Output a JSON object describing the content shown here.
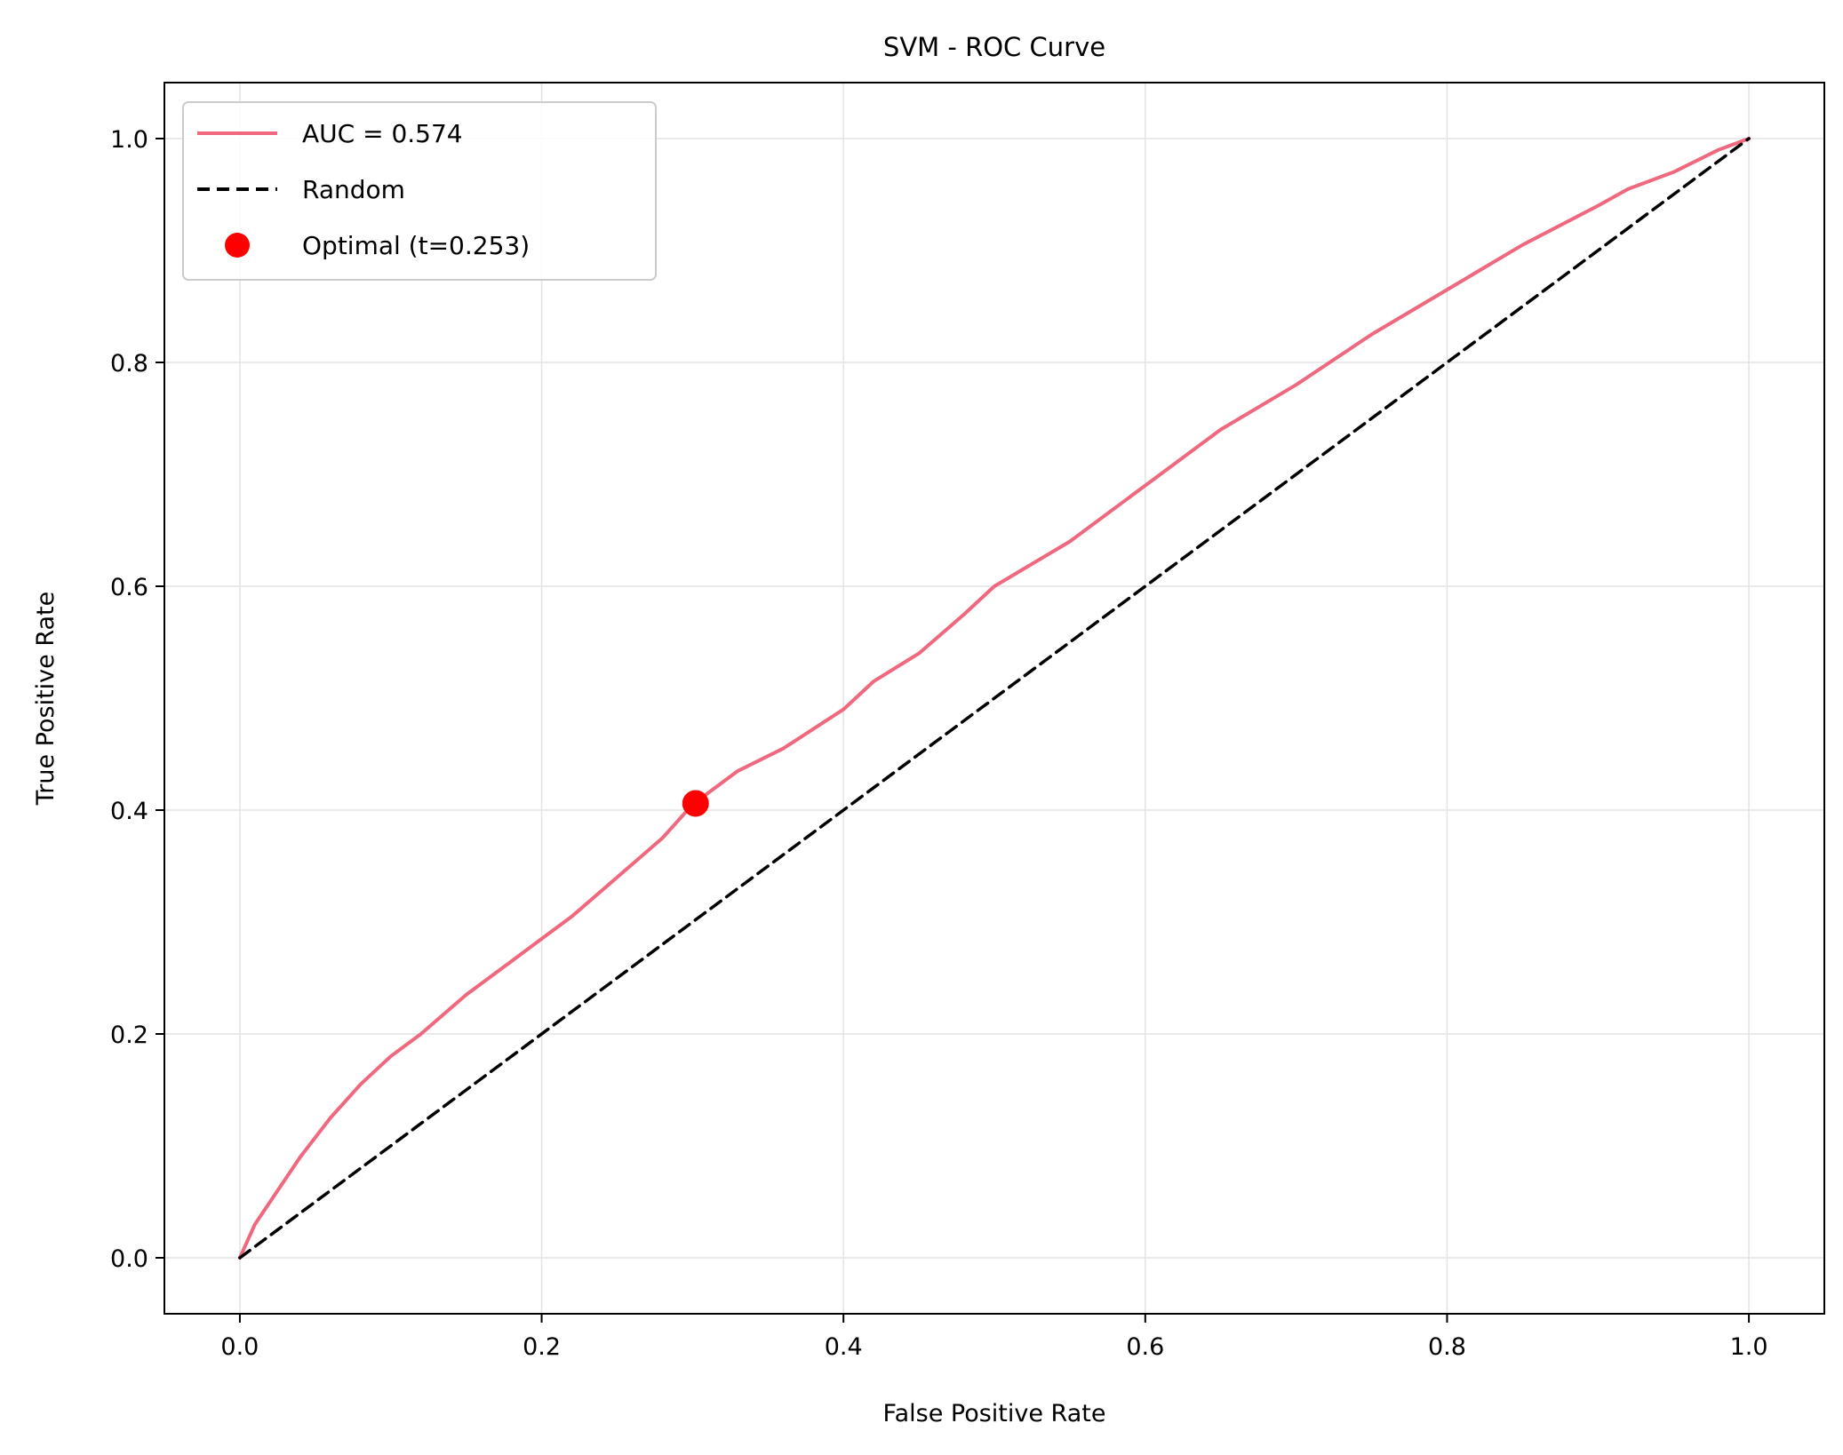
{
  "chart_data": {
    "type": "line",
    "title": "SVM - ROC Curve",
    "xlabel": "False Positive Rate",
    "ylabel": "True Positive Rate",
    "xlim": [
      -0.05,
      1.05
    ],
    "ylim": [
      -0.05,
      1.05
    ],
    "xticks": [
      "0.0",
      "0.2",
      "0.4",
      "0.6",
      "0.8",
      "1.0"
    ],
    "yticks": [
      "0.0",
      "0.2",
      "0.4",
      "0.6",
      "0.8",
      "1.0"
    ],
    "grid": true,
    "legend_position": "top-left",
    "series": [
      {
        "name": "AUC = 0.574",
        "style": "solid",
        "color": "#f0687e",
        "x": [
          0.0,
          0.01,
          0.02,
          0.04,
          0.06,
          0.08,
          0.1,
          0.12,
          0.15,
          0.18,
          0.2,
          0.22,
          0.25,
          0.28,
          0.3,
          0.33,
          0.36,
          0.4,
          0.42,
          0.45,
          0.48,
          0.5,
          0.55,
          0.6,
          0.65,
          0.7,
          0.75,
          0.8,
          0.85,
          0.9,
          0.92,
          0.95,
          0.98,
          1.0
        ],
        "y": [
          0.0,
          0.03,
          0.05,
          0.09,
          0.125,
          0.155,
          0.18,
          0.2,
          0.235,
          0.265,
          0.285,
          0.305,
          0.34,
          0.375,
          0.405,
          0.435,
          0.455,
          0.49,
          0.515,
          0.54,
          0.575,
          0.6,
          0.64,
          0.69,
          0.74,
          0.78,
          0.825,
          0.865,
          0.905,
          0.94,
          0.955,
          0.97,
          0.99,
          1.0
        ]
      },
      {
        "name": "Random",
        "style": "dashed",
        "color": "#000000",
        "x": [
          0.0,
          1.0
        ],
        "y": [
          0.0,
          1.0
        ]
      },
      {
        "name": "Optimal (t=0.253)",
        "style": "marker",
        "color": "#ff0000",
        "x": [
          0.302
        ],
        "y": [
          0.406
        ]
      }
    ]
  }
}
